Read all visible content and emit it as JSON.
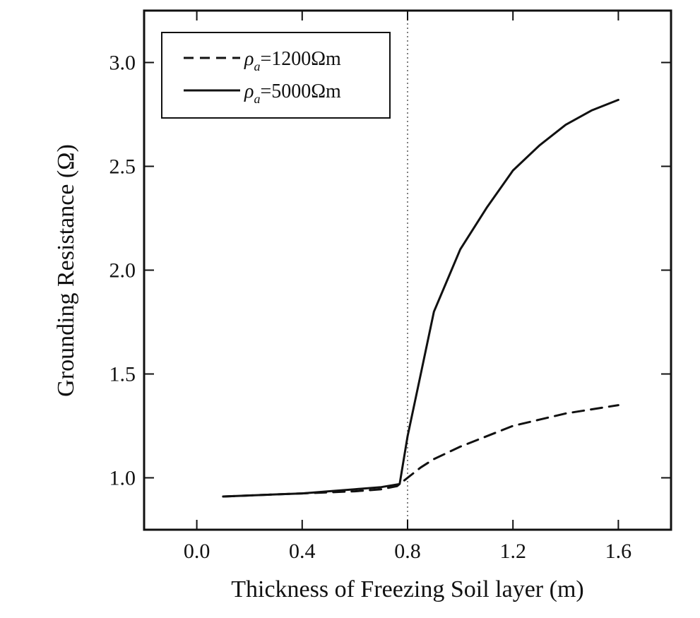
{
  "chart_data": {
    "type": "line",
    "xlabel": "Thickness of Freezing Soil layer (m)",
    "ylabel": "Grounding Resistance (Ω)",
    "xlim": [
      -0.2,
      1.8
    ],
    "ylim": [
      0.75,
      3.25
    ],
    "xticks": [
      0.0,
      0.4,
      0.8,
      1.2,
      1.6
    ],
    "yticks": [
      1.0,
      1.5,
      2.0,
      2.5,
      3.0
    ],
    "xtick_labels": [
      "0.0",
      "0.4",
      "0.8",
      "1.2",
      "1.6"
    ],
    "ytick_labels": [
      "1.0",
      "1.5",
      "2.0",
      "2.5",
      "3.0"
    ],
    "reference_line_x": 0.8,
    "grid": false,
    "legend_position": "top-left",
    "series": [
      {
        "name": "ρa=1200Ωm",
        "name_parts": [
          "ρ",
          "a",
          "=1200Ωm"
        ],
        "style": "dashed",
        "x": [
          0.1,
          0.2,
          0.3,
          0.4,
          0.5,
          0.6,
          0.7,
          0.76,
          0.8,
          0.85,
          0.9,
          1.0,
          1.1,
          1.2,
          1.3,
          1.4,
          1.5,
          1.6
        ],
        "y": [
          0.91,
          0.915,
          0.92,
          0.925,
          0.93,
          0.935,
          0.945,
          0.96,
          1.0,
          1.05,
          1.09,
          1.15,
          1.2,
          1.25,
          1.28,
          1.31,
          1.33,
          1.35
        ]
      },
      {
        "name": "ρa=5000Ωm",
        "name_parts": [
          "ρ",
          "a",
          "=5000Ωm"
        ],
        "style": "solid",
        "x": [
          0.1,
          0.2,
          0.3,
          0.4,
          0.5,
          0.6,
          0.7,
          0.77,
          0.8,
          0.85,
          0.9,
          1.0,
          1.1,
          1.2,
          1.3,
          1.4,
          1.5,
          1.6
        ],
        "y": [
          0.91,
          0.915,
          0.92,
          0.925,
          0.935,
          0.945,
          0.955,
          0.97,
          1.2,
          1.5,
          1.8,
          2.1,
          2.3,
          2.48,
          2.6,
          2.7,
          2.77,
          2.82
        ]
      }
    ]
  }
}
